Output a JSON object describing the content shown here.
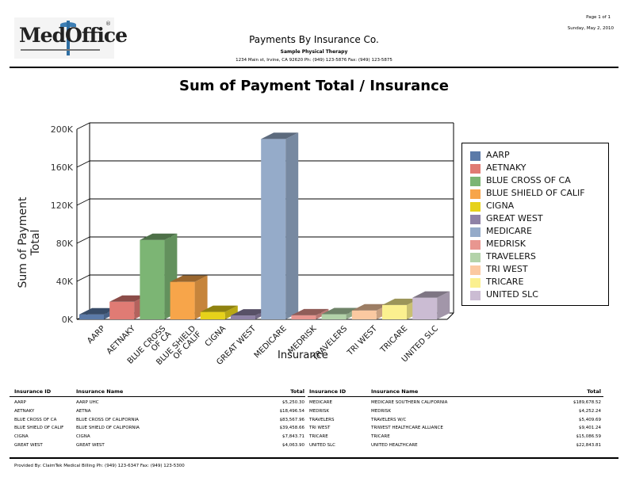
{
  "header": {
    "logo_text": "MedOffice",
    "title": "Payments By Insurance Co.",
    "subtitle": "Sample Physical Therapy",
    "address": "1234 Main st, Irvine, CA 92620 Ph: (949) 123-5876 Fax: (949) 123-5875",
    "page": "Page 1 of 1",
    "date": "Sunday, May 2, 2010"
  },
  "chart_data": {
    "type": "bar",
    "title": "Sum of Payment Total / Insurance",
    "xlabel": "Insurance",
    "ylabel": "Sum of Payment Total",
    "ylim": [
      0,
      200000
    ],
    "yticks": [
      "0K",
      "40K",
      "80K",
      "120K",
      "160K",
      "200K"
    ],
    "grid": true,
    "legend_position": "right",
    "categories": [
      "AARP",
      "AETNAKY",
      "BLUE CROSS OF CA",
      "BLUE SHIELD OF CALIF",
      "CIGNA",
      "GREAT WEST",
      "MEDICARE",
      "MEDRISK",
      "TRAVELERS",
      "TRI WEST",
      "TRICARE",
      "UNITED SLC"
    ],
    "values": [
      5250.3,
      18496.54,
      83567.96,
      39458.66,
      7843.71,
      4063.9,
      189678.52,
      4252.24,
      5409.69,
      9401.24,
      15086.59,
      22843.81
    ],
    "colors": [
      "#5b7aa8",
      "#e07b74",
      "#7cb574",
      "#f7a54a",
      "#e6d21a",
      "#8e82a6",
      "#95abc9",
      "#e89690",
      "#b3d3a9",
      "#fbc9a1",
      "#fbf08f",
      "#cbbcd3"
    ]
  },
  "chart": {
    "x_tick_labels": [
      [
        "AARP"
      ],
      [
        "AETNAKY"
      ],
      [
        "BLUE CROSS",
        "OF CA"
      ],
      [
        "BLUE SHIELD",
        "OF CALIF"
      ],
      [
        "CIGNA"
      ],
      [
        "GREAT WEST"
      ],
      [
        "MEDICARE"
      ],
      [
        "MEDRISK"
      ],
      [
        "TRAVELERS"
      ],
      [
        "TRI WEST"
      ],
      [
        "TRICARE"
      ],
      [
        "UNITED SLC"
      ]
    ]
  },
  "table": {
    "headers": [
      "Insurance ID",
      "Insurance Name",
      "Total"
    ],
    "left_rows": [
      {
        "id": "AARP",
        "name": "AARP UHC",
        "total": "$5,250.30"
      },
      {
        "id": "AETNAKY",
        "name": "AETNA",
        "total": "$18,496.54"
      },
      {
        "id": "BLUE CROSS OF CA",
        "name": "BLUE CROSS OF CALIFORNIA",
        "total": "$83,567.96"
      },
      {
        "id": "BLUE SHIELD OF CALIF",
        "name": "BLUE SHIELD OF CALIFORNIA",
        "total": "$39,458.66"
      },
      {
        "id": "CIGNA",
        "name": "CIGNA",
        "total": "$7,843.71"
      },
      {
        "id": "GREAT WEST",
        "name": "GREAT WEST",
        "total": "$4,063.90"
      }
    ],
    "right_rows": [
      {
        "id": "MEDICARE",
        "name": "MEDICARE SOUTHERN CALIFORNIA",
        "total": "$189,678.52"
      },
      {
        "id": "MEDRISK",
        "name": "MEDRISK",
        "total": "$4,252.24"
      },
      {
        "id": "TRAVELERS",
        "name": "TRAVELERS W/C",
        "total": "$5,409.69"
      },
      {
        "id": "TRI WEST",
        "name": "TRIWEST HEALTHCARE ALLIANCE",
        "total": "$9,401.24"
      },
      {
        "id": "TRICARE",
        "name": "TRICARE",
        "total": "$15,086.59"
      },
      {
        "id": "UNITED SLC",
        "name": "UNITED HEALTHCARE",
        "total": "$22,843.81"
      }
    ]
  },
  "footer": {
    "text": "Provided By: ClaimTek Medical Billing Ph: (949) 123-6347 Fax: (949) 123-5300"
  }
}
